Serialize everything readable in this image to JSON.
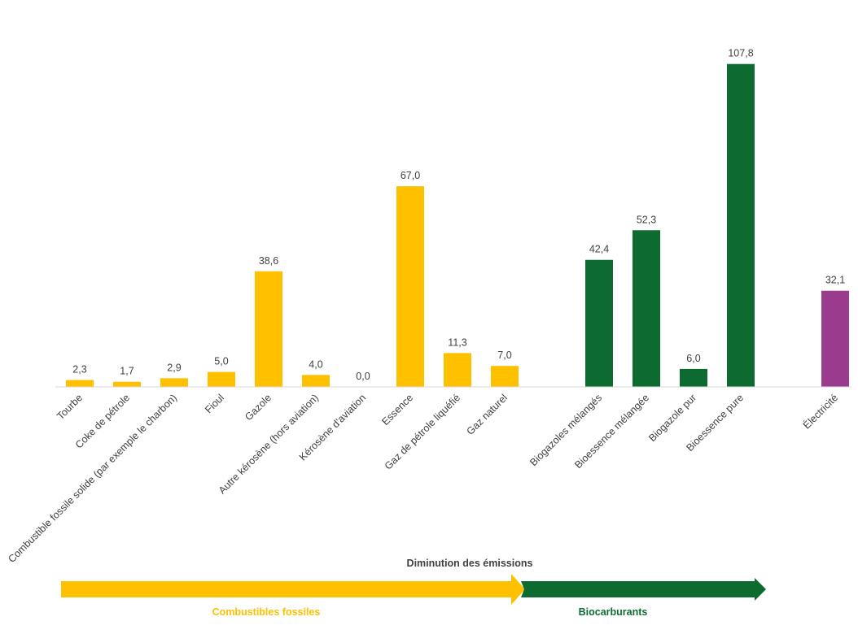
{
  "chart_data": {
    "type": "bar",
    "categories": [
      "Tourbe",
      "Coke de pétrole",
      "Combustible fossile solide (par exemple le charbon)",
      "Fioul",
      "Gazole",
      "Autre kérosène (hors aviation)",
      "Kérosène d'aviation",
      "Essence",
      "Gaz de pétrole liquéfié",
      "Gaz naturel",
      "Biogazoles mélangés",
      "Bioessence mélangée",
      "Biogazole pur",
      "Bioessence pure",
      "Électricité"
    ],
    "values": [
      2.3,
      1.7,
      2.9,
      5.0,
      38.6,
      4.0,
      0.0,
      67.0,
      11.3,
      7.0,
      42.4,
      52.3,
      6.0,
      107.8,
      32.1
    ],
    "value_labels": [
      "2,3",
      "1,7",
      "2,9",
      "5,0",
      "38,6",
      "4,0",
      "0,0",
      "67,0",
      "11,3",
      "7,0",
      "42,4",
      "52,3",
      "6,0",
      "107,8",
      "32,1"
    ],
    "groups": [
      "fossil",
      "fossil",
      "fossil",
      "fossil",
      "fossil",
      "fossil",
      "fossil",
      "fossil",
      "fossil",
      "fossil",
      "bio",
      "bio",
      "bio",
      "bio",
      "electric"
    ],
    "ylim": [
      0,
      108
    ],
    "grid": false,
    "legend": "none"
  },
  "colors": {
    "fossil": "#FFC000",
    "bio": "#0D6B2F",
    "electric": "#9B3B8E",
    "text": "#404040",
    "baseline": "#D9D9D9"
  },
  "annotations": {
    "emissions_label": "Diminution des émissions",
    "fossil_label": "Combustibles fossiles",
    "bio_label": "Biocarburants"
  }
}
